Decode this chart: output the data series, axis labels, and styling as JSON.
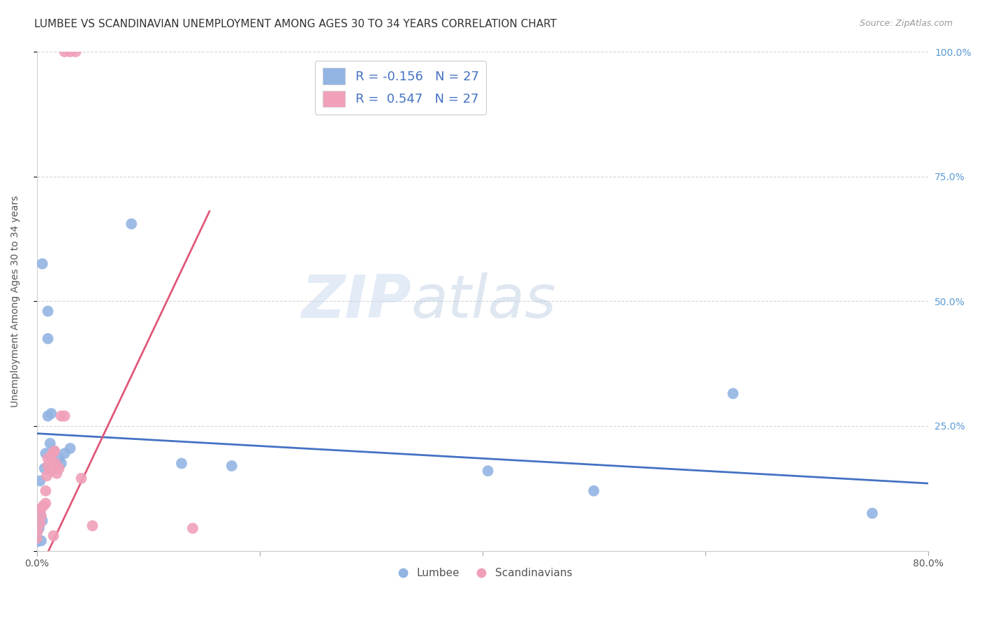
{
  "title": "LUMBEE VS SCANDINAVIAN UNEMPLOYMENT AMONG AGES 30 TO 34 YEARS CORRELATION CHART",
  "source": "Source: ZipAtlas.com",
  "ylabel": "Unemployment Among Ages 30 to 34 years",
  "xlim": [
    0.0,
    0.8
  ],
  "ylim": [
    0.0,
    1.0
  ],
  "lumbee_color": "#92b4e3",
  "scand_color": "#f0a0b8",
  "lumbee_line_color": "#4472c4",
  "scand_line_color": "#e05878",
  "lumbee_R": -0.156,
  "lumbee_N": 27,
  "scand_R": 0.547,
  "scand_N": 27,
  "lumbee_line": [
    0.0,
    0.235,
    0.8,
    0.135
  ],
  "scand_line": [
    0.0,
    -0.05,
    0.155,
    0.68
  ],
  "lumbee_pts": [
    [
      0.0,
      0.028
    ],
    [
      0.0,
      0.018
    ],
    [
      0.002,
      0.045
    ],
    [
      0.003,
      0.075
    ],
    [
      0.003,
      0.14
    ],
    [
      0.004,
      0.02
    ],
    [
      0.005,
      0.06
    ],
    [
      0.007,
      0.165
    ],
    [
      0.008,
      0.195
    ],
    [
      0.01,
      0.27
    ],
    [
      0.012,
      0.215
    ],
    [
      0.013,
      0.275
    ],
    [
      0.015,
      0.2
    ],
    [
      0.02,
      0.185
    ],
    [
      0.022,
      0.175
    ],
    [
      0.025,
      0.195
    ],
    [
      0.03,
      0.205
    ],
    [
      0.005,
      0.575
    ],
    [
      0.085,
      0.655
    ],
    [
      0.01,
      0.48
    ],
    [
      0.01,
      0.425
    ],
    [
      0.13,
      0.175
    ],
    [
      0.175,
      0.17
    ],
    [
      0.405,
      0.16
    ],
    [
      0.5,
      0.12
    ],
    [
      0.625,
      0.315
    ],
    [
      0.75,
      0.075
    ]
  ],
  "scand_pts": [
    [
      0.025,
      1.0
    ],
    [
      0.03,
      1.0
    ],
    [
      0.035,
      1.0
    ],
    [
      0.0,
      0.025
    ],
    [
      0.001,
      0.04
    ],
    [
      0.003,
      0.055
    ],
    [
      0.004,
      0.07
    ],
    [
      0.004,
      0.085
    ],
    [
      0.006,
      0.09
    ],
    [
      0.008,
      0.12
    ],
    [
      0.009,
      0.15
    ],
    [
      0.01,
      0.17
    ],
    [
      0.01,
      0.185
    ],
    [
      0.012,
      0.16
    ],
    [
      0.013,
      0.18
    ],
    [
      0.014,
      0.195
    ],
    [
      0.016,
      0.2
    ],
    [
      0.017,
      0.175
    ],
    [
      0.018,
      0.155
    ],
    [
      0.02,
      0.165
    ],
    [
      0.022,
      0.27
    ],
    [
      0.025,
      0.27
    ],
    [
      0.04,
      0.145
    ],
    [
      0.05,
      0.05
    ],
    [
      0.14,
      0.045
    ],
    [
      0.008,
      0.095
    ],
    [
      0.015,
      0.03
    ]
  ],
  "grid_color": "#cccccc",
  "background_color": "#ffffff",
  "title_fontsize": 11,
  "axis_label_fontsize": 10,
  "tick_fontsize": 10,
  "right_ytick_color": "#5b9bd5",
  "legend_text_color": "#4472c4"
}
